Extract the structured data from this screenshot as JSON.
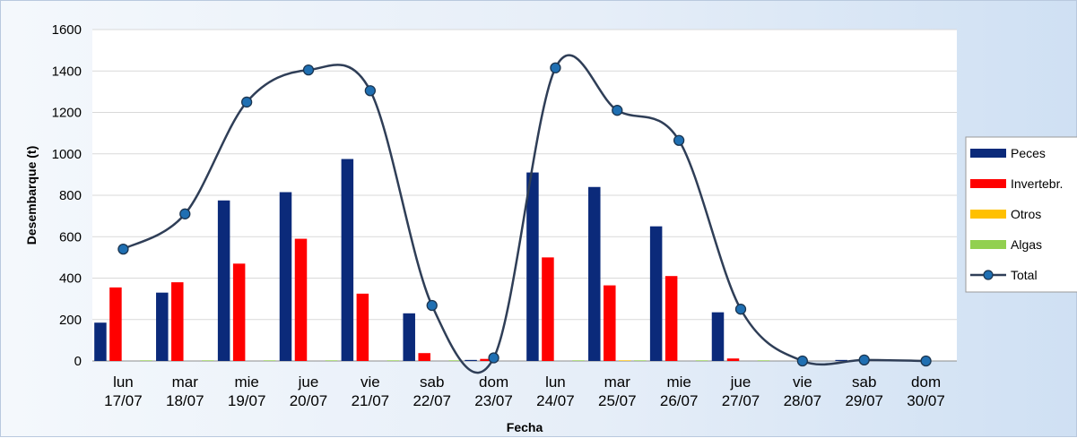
{
  "chart_data": {
    "type": "bar",
    "xlabel": "Fecha",
    "ylabel": "Desembarque (t)",
    "ylim": [
      0,
      1600
    ],
    "yticks": [
      0,
      200,
      400,
      600,
      800,
      1000,
      1200,
      1400,
      1600
    ],
    "grid": true,
    "legend_position": "right",
    "categories": [
      [
        "lun",
        "17/07"
      ],
      [
        "mar",
        "18/07"
      ],
      [
        "mie",
        "19/07"
      ],
      [
        "jue",
        "20/07"
      ],
      [
        "vie",
        "21/07"
      ],
      [
        "sab",
        "22/07"
      ],
      [
        "dom",
        "23/07"
      ],
      [
        "lun",
        "24/07"
      ],
      [
        "mar",
        "25/07"
      ],
      [
        "mie",
        "26/07"
      ],
      [
        "jue",
        "27/07"
      ],
      [
        "vie",
        "28/07"
      ],
      [
        "sab",
        "29/07"
      ],
      [
        "dom",
        "30/07"
      ]
    ],
    "series": [
      {
        "name": "Peces",
        "kind": "bar",
        "color": "#0b2a7a",
        "values": [
          185,
          330,
          775,
          815,
          975,
          230,
          5,
          910,
          840,
          650,
          235,
          0,
          5,
          0
        ]
      },
      {
        "name": "Invertebr.",
        "kind": "bar",
        "color": "#ff0000",
        "values": [
          355,
          380,
          470,
          590,
          325,
          38,
          10,
          500,
          365,
          410,
          12,
          0,
          0,
          0
        ]
      },
      {
        "name": "Otros",
        "kind": "bar",
        "color": "#ffc000",
        "values": [
          0,
          0,
          0,
          0,
          0,
          0,
          0,
          0,
          3,
          0,
          0,
          0,
          0,
          0
        ]
      },
      {
        "name": "Algas",
        "kind": "bar",
        "color": "#92d050",
        "values": [
          3,
          3,
          3,
          3,
          3,
          3,
          0,
          3,
          3,
          3,
          3,
          0,
          0,
          0
        ]
      },
      {
        "name": "Total",
        "kind": "line",
        "color": "#2f3e57",
        "marker_color": "#1f6fb2",
        "values": [
          540,
          710,
          1250,
          1405,
          1305,
          268,
          15,
          1415,
          1210,
          1065,
          250,
          0,
          5,
          0
        ]
      }
    ]
  }
}
